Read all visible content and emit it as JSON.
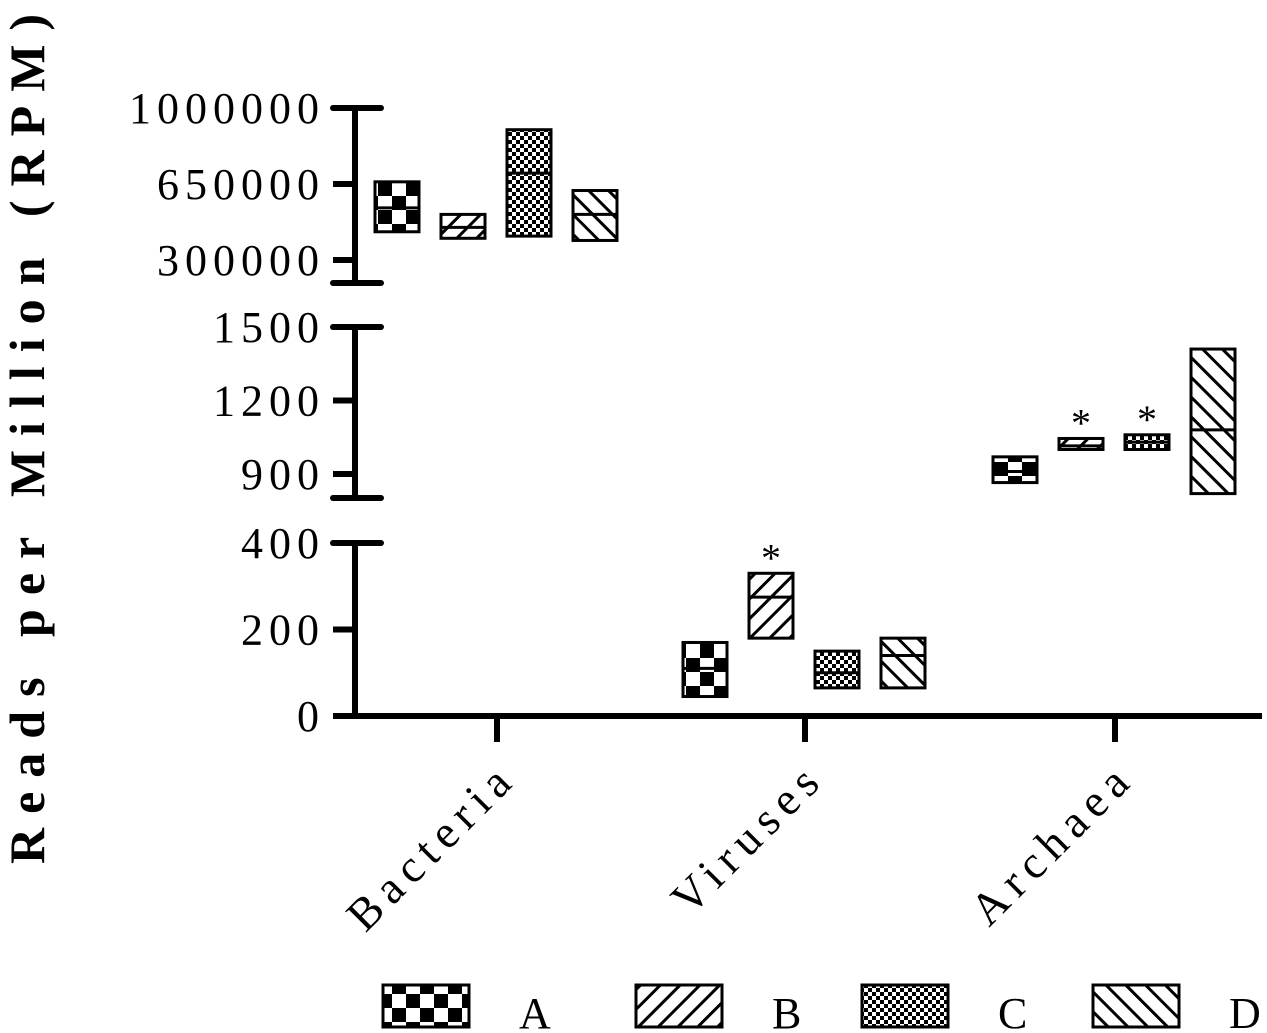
{
  "chart_data": {
    "type": "box",
    "ylabel": "Reads per Million (RPM)",
    "categories": [
      "Bacteria",
      "Viruses",
      "Archaea"
    ],
    "legend_position": "bottom",
    "axis_segments": [
      {
        "range": [
          0,
          400
        ],
        "ticks": [
          "0",
          "200",
          "400"
        ]
      },
      {
        "range": [
          800,
          1500
        ],
        "ticks": [
          "900",
          "1200",
          "1500"
        ]
      },
      {
        "range": [
          250000,
          1000000
        ],
        "ticks": [
          "300000",
          "650000",
          "1000000"
        ]
      }
    ],
    "series": [
      {
        "name": "A",
        "pattern": "checker-large",
        "boxes": [
          {
            "low": 430000,
            "median": 540000,
            "high": 660000
          },
          {
            "low": 45,
            "median": 110,
            "high": 170
          },
          {
            "low": 865,
            "median": 910,
            "high": 970
          }
        ]
      },
      {
        "name": "B",
        "pattern": "diagonal-up",
        "boxes": [
          {
            "low": 400000,
            "median": 450000,
            "high": 510000
          },
          {
            "low": 180,
            "median": 275,
            "high": 330
          },
          {
            "low": 1000,
            "median": 1015,
            "high": 1045
          }
        ]
      },
      {
        "name": "C",
        "pattern": "checker-small",
        "boxes": [
          {
            "low": 410000,
            "median": 700000,
            "high": 900000
          },
          {
            "low": 65,
            "median": 100,
            "high": 150
          },
          {
            "low": 1000,
            "median": 1030,
            "high": 1060
          }
        ]
      },
      {
        "name": "D",
        "pattern": "diagonal-down",
        "boxes": [
          {
            "low": 390000,
            "median": 510000,
            "high": 620000
          },
          {
            "low": 65,
            "median": 140,
            "high": 180
          },
          {
            "low": 820,
            "median": 1080,
            "high": 1410
          }
        ]
      }
    ],
    "annotations": [
      {
        "text": "*",
        "category": "Viruses",
        "series": "B"
      },
      {
        "text": "*",
        "category": "Archaea",
        "series": "B"
      },
      {
        "text": "*",
        "category": "Archaea",
        "series": "C"
      }
    ]
  }
}
